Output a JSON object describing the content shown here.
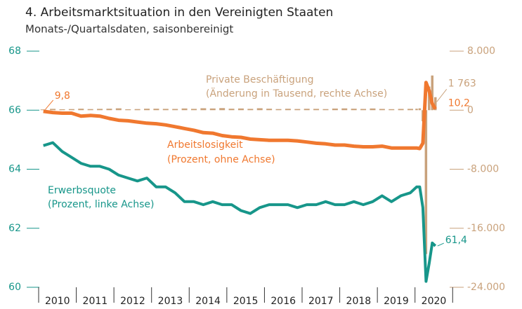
{
  "chart_data": {
    "type": "line",
    "title": "4. Arbeitsmarktsituation in den Vereinigten Staaten",
    "subtitle": "Monats-/Quartalsdaten, saisonbereinigt",
    "x": [
      2010.125,
      2010.375,
      2010.625,
      2010.875,
      2011.125,
      2011.375,
      2011.625,
      2011.875,
      2012.125,
      2012.375,
      2012.625,
      2012.875,
      2013.125,
      2013.375,
      2013.625,
      2013.875,
      2014.125,
      2014.375,
      2014.625,
      2014.875,
      2015.125,
      2015.375,
      2015.625,
      2015.875,
      2016.125,
      2016.375,
      2016.625,
      2016.875,
      2017.125,
      2017.375,
      2017.625,
      2017.875,
      2018.125,
      2018.375,
      2018.625,
      2018.875,
      2019.125,
      2019.375,
      2019.625,
      2019.875,
      2020.042,
      2020.125,
      2020.208,
      2020.292,
      2020.375,
      2020.458,
      2020.542
    ],
    "xlim": [
      2009.72,
      2021.2
    ],
    "xticks": [
      2010,
      2011,
      2012,
      2013,
      2014,
      2015,
      2016,
      2017,
      2018,
      2019,
      2020,
      2021
    ],
    "year_labels": [
      "2010",
      "2011",
      "2012",
      "2013",
      "2014",
      "2015",
      "2016",
      "2017",
      "2018",
      "2019",
      "2020"
    ],
    "ylim": [
      60,
      68
    ],
    "yticks": [
      60,
      62,
      64,
      66,
      68
    ],
    "y2lim": [
      -24000,
      8000
    ],
    "y2ticks": [
      {
        "value": -24000,
        "label": "-24.000"
      },
      {
        "value": -16000,
        "label": "-16.000"
      },
      {
        "value": -8000,
        "label": "-8.000"
      },
      0,
      {
        "value": 8000,
        "label": "8.000"
      }
    ],
    "y3lim": [
      -20,
      20
    ],
    "series": [
      {
        "name": "Erwerbsquote",
        "label_note": "(Prozent, linke Achse)",
        "type": "line",
        "color": "#17968a",
        "values": [
          64.8,
          64.9,
          64.6,
          64.4,
          64.2,
          64.1,
          64.1,
          64.0,
          63.8,
          63.7,
          63.6,
          63.7,
          63.4,
          63.4,
          63.2,
          62.9,
          62.9,
          62.8,
          62.9,
          62.8,
          62.8,
          62.6,
          62.5,
          62.7,
          62.8,
          62.8,
          62.8,
          62.7,
          62.8,
          62.8,
          62.9,
          62.8,
          62.8,
          62.9,
          62.8,
          62.9,
          63.1,
          62.9,
          63.1,
          63.2,
          63.4,
          63.4,
          62.7,
          60.2,
          60.8,
          61.5,
          61.4
        ],
        "value_labels": {
          "46": "61,4"
        }
      },
      {
        "name": "Arbeitslosigkeit",
        "label_note": "(Prozent, ohne Achse)",
        "type": "line",
        "axis": "y3",
        "color": "#f0782f",
        "values": [
          9.8,
          9.6,
          9.5,
          9.5,
          9.0,
          9.1,
          9.0,
          8.6,
          8.3,
          8.2,
          8.0,
          7.8,
          7.7,
          7.5,
          7.2,
          6.9,
          6.6,
          6.2,
          6.1,
          5.7,
          5.5,
          5.4,
          5.1,
          5.0,
          4.9,
          4.9,
          4.9,
          4.8,
          4.6,
          4.4,
          4.3,
          4.1,
          4.1,
          3.9,
          3.8,
          3.8,
          3.9,
          3.6,
          3.6,
          3.6,
          3.6,
          3.5,
          4.4,
          14.7,
          13.3,
          11.1,
          10.2
        ],
        "value_labels": {
          "0": "9,8",
          "46": "10,2"
        }
      },
      {
        "name": "Private Beschäftigung",
        "label_note": "(Änderung in Tausend, rechte Achse)",
        "type": "bar",
        "axis": "y2",
        "color": "#c9a27c",
        "values": [
          100,
          180,
          120,
          150,
          200,
          150,
          180,
          200,
          250,
          120,
          150,
          200,
          200,
          180,
          170,
          230,
          180,
          260,
          230,
          280,
          200,
          230,
          180,
          260,
          200,
          150,
          190,
          160,
          190,
          180,
          150,
          220,
          240,
          200,
          170,
          230,
          170,
          140,
          170,
          180,
          200,
          250,
          -1500,
          -19500,
          3200,
          4700,
          1763
        ],
        "value_labels": {
          "46": "1 763"
        }
      }
    ]
  }
}
